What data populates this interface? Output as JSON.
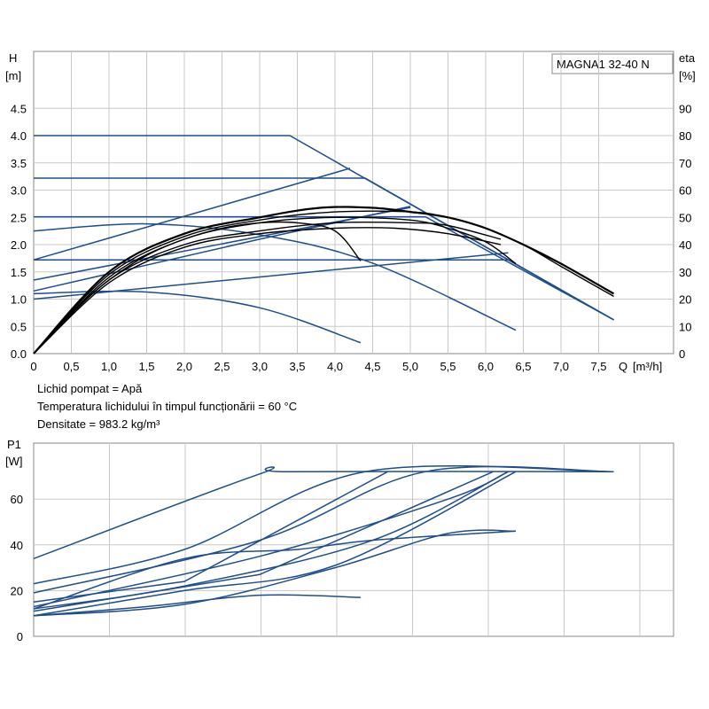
{
  "chart_data": [
    {
      "type": "line",
      "model": "MAGNA1 32-40 N",
      "xlabel_left": "Q",
      "xlabel_unit": "[m³/h]",
      "ylabel_left": "H",
      "ylabel_left_unit": "[m]",
      "ylabel_right": "eta",
      "ylabel_right_unit": "[%]",
      "xlim": [
        0,
        8.25
      ],
      "ylim": [
        0,
        5.0
      ],
      "y2lim": [
        0,
        100
      ],
      "x_ticks": [
        "0",
        "0,5",
        "1,0",
        "1,5",
        "2,0",
        "2,5",
        "3,0",
        "3,5",
        "4,0",
        "4,5",
        "5,0",
        "5,5",
        "6,0",
        "6,5",
        "7,0",
        "7,5"
      ],
      "y_ticks": [
        "0.0",
        "0.5",
        "1.0",
        "1.5",
        "2.0",
        "2.5",
        "3.0",
        "3.5",
        "4.0",
        "4.5"
      ],
      "y2_ticks": [
        "0",
        "10",
        "20",
        "30",
        "40",
        "50",
        "60",
        "70",
        "80",
        "90"
      ],
      "grid": true,
      "colors": {
        "head": "#1f4e8c",
        "efficiency": "#000000",
        "grid": "#c8c8c8"
      },
      "notes": [
        "Lichid pompat = Apă",
        "Temperatura lichidului în timpul funcționării = 60 °C",
        "Densitate = 983.2 kg/m³"
      ],
      "head_curves": [
        {
          "values": [
            [
              0,
              4.0
            ],
            [
              3.4,
              4.0
            ],
            [
              7.7,
              0.62
            ]
          ]
        },
        {
          "values": [
            [
              0,
              3.22
            ],
            [
              4.4,
              3.22
            ],
            [
              7.7,
              0.62
            ]
          ]
        },
        {
          "values": [
            [
              0,
              2.51
            ],
            [
              5.2,
              2.51
            ],
            [
              7.7,
              0.62
            ]
          ]
        },
        {
          "values": [
            [
              0,
              1.72
            ],
            [
              6.3,
              1.72
            ],
            [
              7.7,
              0.62
            ]
          ]
        },
        {
          "values": [
            [
              0,
              2.25
            ],
            [
              1.5,
              2.38
            ],
            [
              3,
              2.18
            ],
            [
              4.5,
              1.66
            ],
            [
              6.4,
              0.43
            ]
          ]
        },
        {
          "values": [
            [
              0,
              1.1
            ],
            [
              1.5,
              1.13
            ],
            [
              3,
              0.84
            ],
            [
              4.34,
              0.2
            ]
          ]
        },
        {
          "values": [
            [
              0,
              1.72
            ],
            [
              4.2,
              3.4
            ]
          ]
        },
        {
          "values": [
            [
              0,
              1.35
            ],
            [
              5.0,
              2.68
            ]
          ]
        },
        {
          "values": [
            [
              0,
              1.0
            ],
            [
              6.3,
              1.85
            ]
          ]
        },
        {
          "values": [
            [
              0,
              1.15
            ],
            [
              3.0,
              2.1
            ],
            [
              5.0,
              2.7
            ]
          ]
        }
      ],
      "efficiency_curves": [
        {
          "values": [
            [
              0,
              0
            ],
            [
              0.5,
              15
            ],
            [
              1,
              27
            ],
            [
              1.5,
              36
            ],
            [
              2,
              42
            ],
            [
              2.5,
              46
            ],
            [
              3,
              48
            ],
            [
              3.5,
              48
            ],
            [
              4,
              45
            ],
            [
              4.34,
              34
            ]
          ]
        },
        {
          "values": [
            [
              0,
              0
            ],
            [
              1,
              28
            ],
            [
              2,
              42
            ],
            [
              3,
              48
            ],
            [
              4,
              50
            ],
            [
              5,
              49
            ],
            [
              5.5,
              46
            ],
            [
              6,
              41
            ],
            [
              6.4,
              33
            ]
          ]
        },
        {
          "values": [
            [
              0,
              0
            ],
            [
              1,
              29
            ],
            [
              2,
              43
            ],
            [
              3,
              49
            ],
            [
              4,
              52
            ],
            [
              5,
              52
            ],
            [
              5.5,
              50
            ],
            [
              6,
              46
            ],
            [
              6.5,
              40
            ],
            [
              7,
              32
            ],
            [
              7.7,
              21
            ]
          ]
        },
        {
          "values": [
            [
              0,
              0
            ],
            [
              1,
              30
            ],
            [
              2,
              44
            ],
            [
              3,
              50
            ],
            [
              3.8,
              53.5
            ],
            [
              4.5,
              53.5
            ],
            [
              5,
              52
            ],
            [
              5.5,
              50
            ],
            [
              6,
              46
            ],
            [
              6.5,
              40
            ],
            [
              7,
              33
            ],
            [
              7.7,
              22
            ]
          ]
        },
        {
          "values": [
            [
              0,
              0
            ],
            [
              1,
              26
            ],
            [
              2,
              39
            ],
            [
              3,
              44
            ],
            [
              4,
              46
            ],
            [
              4.8,
              46
            ],
            [
              5.5,
              44
            ],
            [
              6.2,
              40
            ]
          ]
        },
        {
          "values": [
            [
              0,
              0
            ],
            [
              1,
              27
            ],
            [
              2,
              40
            ],
            [
              3,
              45
            ],
            [
              4,
              48
            ],
            [
              5,
              48
            ],
            [
              5.5,
              47
            ],
            [
              6.2,
              42
            ]
          ]
        }
      ]
    },
    {
      "type": "line",
      "ylabel": "P1",
      "ylabel_unit": "[W]",
      "xlim": [
        0,
        8.25
      ],
      "ylim": [
        0,
        80
      ],
      "y_ticks": [
        "0",
        "20",
        "40",
        "60"
      ],
      "grid": true,
      "color": "#1f4e8c",
      "power_curves": [
        {
          "values": [
            [
              0,
              34
            ],
            [
              3,
              71
            ],
            [
              3.4,
              72
            ],
            [
              7.7,
              72
            ]
          ]
        },
        {
          "values": [
            [
              0,
              23
            ],
            [
              2,
              38
            ],
            [
              4.4,
              72
            ],
            [
              7.7,
              72
            ]
          ]
        },
        {
          "values": [
            [
              0,
              19
            ],
            [
              3,
              42
            ],
            [
              5.2,
              72
            ],
            [
              7.7,
              72
            ]
          ]
        },
        {
          "values": [
            [
              0,
              15
            ],
            [
              2,
              24
            ],
            [
              4.7,
              72
            ]
          ]
        },
        {
          "values": [
            [
              0,
              13
            ],
            [
              3,
              35
            ],
            [
              5.5,
              60
            ],
            [
              6.3,
              72
            ]
          ]
        },
        {
          "values": [
            [
              0,
              12
            ],
            [
              2,
              22
            ],
            [
              4.5,
              42
            ],
            [
              6.3,
              72
            ]
          ]
        },
        {
          "values": [
            [
              0,
              11
            ],
            [
              3,
              27
            ],
            [
              6.1,
              72
            ]
          ]
        },
        {
          "values": [
            [
              0,
              9
            ],
            [
              2,
              20
            ],
            [
              4,
              31
            ],
            [
              6.4,
              72
            ]
          ]
        },
        {
          "values": [
            [
              0,
              9
            ],
            [
              2,
              14
            ],
            [
              4,
              30
            ],
            [
              5.5,
              45
            ],
            [
              6.4,
              46
            ]
          ]
        },
        {
          "values": [
            [
              0,
              9
            ],
            [
              1.5,
              13
            ],
            [
              3,
              18
            ],
            [
              4.34,
              17
            ]
          ]
        },
        {
          "values": [
            [
              0,
              12
            ],
            [
              2,
              34
            ],
            [
              3.5,
              38
            ],
            [
              4.5,
              42
            ],
            [
              6.4,
              46
            ]
          ]
        }
      ]
    }
  ]
}
